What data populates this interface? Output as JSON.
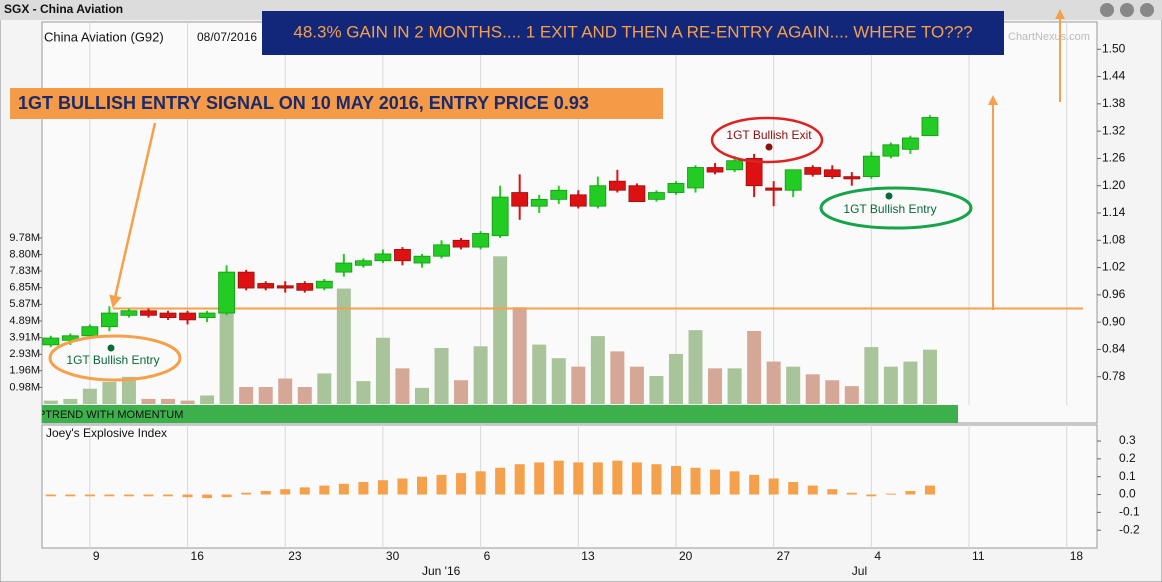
{
  "window_title": "SGX - China Aviation",
  "watermark": "ChartNexus.com",
  "chart_data": [
    {
      "type": "candlestick",
      "title": "China Aviation (G92)",
      "date": "08/07/2016",
      "up_color": "#22cc22",
      "down_color": "#dd1111",
      "categories": [
        null,
        null,
        "9",
        null,
        null,
        null,
        null,
        "16",
        null,
        null,
        null,
        null,
        "23",
        null,
        null,
        null,
        null,
        "30",
        null,
        null,
        null,
        null,
        "6",
        null,
        null,
        null,
        null,
        "13",
        null,
        null,
        null,
        null,
        "20",
        null,
        null,
        null,
        null,
        "27",
        null,
        null,
        null,
        null,
        "4",
        null,
        null,
        null,
        null,
        "11",
        null,
        null,
        null,
        null,
        "18",
        null
      ],
      "months": [
        null,
        null,
        null,
        null,
        null,
        null,
        null,
        null,
        null,
        null,
        null,
        null,
        null,
        null,
        null,
        null,
        null,
        null,
        null,
        "Jun '16",
        null,
        null,
        null,
        null,
        null,
        null,
        null,
        null,
        null,
        null,
        null,
        null,
        null,
        null,
        null,
        null,
        null,
        null,
        null,
        null,
        null,
        "Jul",
        null,
        null,
        null,
        null,
        null,
        null,
        null,
        null,
        null,
        null,
        null
      ],
      "open": [
        0.85,
        0.86,
        0.87,
        0.89,
        0.915,
        0.925,
        0.92,
        0.92,
        0.91,
        0.92,
        1.01,
        0.985,
        0.98,
        0.985,
        0.975,
        1.01,
        1.025,
        1.035,
        1.06,
        1.03,
        1.045,
        1.08,
        1.065,
        1.09,
        1.185,
        1.155,
        1.17,
        1.18,
        1.155,
        1.21,
        1.2,
        1.17,
        1.185,
        1.195,
        1.24,
        1.235,
        1.26,
        1.195,
        1.19,
        1.24,
        1.235,
        1.22,
        1.22,
        1.265,
        1.28,
        1.31,
        null,
        null,
        null,
        null,
        null,
        null,
        null
      ],
      "high": [
        0.87,
        0.875,
        0.895,
        0.935,
        0.93,
        0.93,
        0.925,
        0.925,
        0.925,
        1.025,
        1.015,
        0.99,
        0.99,
        0.99,
        0.995,
        1.05,
        1.04,
        1.06,
        1.065,
        1.05,
        1.08,
        1.085,
        1.1,
        1.2,
        1.225,
        1.18,
        1.2,
        1.19,
        1.22,
        1.235,
        1.205,
        1.19,
        1.21,
        1.245,
        1.25,
        1.265,
        1.27,
        1.21,
        1.235,
        1.245,
        1.245,
        1.23,
        1.275,
        1.295,
        1.31,
        1.355,
        null,
        null,
        null,
        null,
        null,
        null,
        null
      ],
      "low": [
        0.845,
        0.85,
        0.865,
        0.88,
        0.91,
        0.91,
        0.905,
        0.895,
        0.9,
        0.915,
        0.97,
        0.97,
        0.965,
        0.965,
        0.97,
        1.0,
        1.02,
        1.03,
        1.025,
        1.02,
        1.04,
        1.06,
        1.06,
        1.085,
        1.125,
        1.14,
        1.16,
        1.15,
        1.15,
        1.185,
        1.165,
        1.165,
        1.18,
        1.185,
        1.225,
        1.23,
        1.175,
        1.155,
        1.175,
        1.22,
        1.215,
        1.2,
        1.215,
        1.26,
        1.27,
        1.31,
        null,
        null,
        null,
        null,
        null,
        null,
        null
      ],
      "close": [
        0.865,
        0.87,
        0.89,
        0.92,
        0.925,
        0.915,
        0.91,
        0.905,
        0.92,
        1.01,
        0.975,
        0.975,
        0.975,
        0.97,
        0.99,
        1.03,
        1.035,
        1.05,
        1.035,
        1.045,
        1.07,
        1.065,
        1.095,
        1.175,
        1.155,
        1.17,
        1.19,
        1.155,
        1.2,
        1.19,
        1.165,
        1.185,
        1.205,
        1.24,
        1.23,
        1.255,
        1.2,
        1.19,
        1.235,
        1.225,
        1.22,
        1.215,
        1.265,
        1.29,
        1.305,
        1.35,
        null,
        null,
        null,
        null,
        null,
        null,
        null
      ],
      "volume": {
        "axis": "y2",
        "up_color": "#a9c49b",
        "down_color": "#d4a796",
        "values": [
          200000,
          300000,
          900000,
          1300000,
          1600000,
          300000,
          300000,
          200000,
          500000,
          5400000,
          1000000,
          1000000,
          1500000,
          1000000,
          1800000,
          6800000,
          1350000,
          3900000,
          2100000,
          950000,
          3300000,
          1400000,
          3400000,
          8700000,
          5700000,
          3500000,
          2700000,
          2200000,
          4000000,
          3100000,
          2200000,
          1650000,
          2950000,
          4350000,
          2100000,
          2100000,
          4300000,
          2500000,
          2200000,
          1750000,
          1400000,
          1050000,
          3350000,
          2200000,
          2500000,
          3200000,
          null,
          null,
          null,
          null,
          null,
          null,
          null
        ]
      },
      "ylim": [
        0.72,
        1.56
      ],
      "yticks": [
        0.78,
        0.84,
        {
          "value": 0.9,
          "label": "0.90"
        },
        0.96,
        1.02,
        1.08,
        1.14,
        {
          "value": 1.2,
          "label": "1.20"
        },
        1.26,
        1.32,
        1.38,
        1.44,
        {
          "value": 1.5,
          "label": "1.50"
        }
      ],
      "y2lim": [
        0,
        22500000
      ],
      "y2ticks": [
        {
          "value": 980000,
          "label": "0.98M"
        },
        {
          "value": 1960000,
          "label": "1.96M"
        },
        {
          "value": 2930000,
          "label": "2.93M"
        },
        {
          "value": 3910000,
          "label": "3.91M"
        },
        {
          "value": 4890000,
          "label": "4.89M"
        },
        {
          "value": 5870000,
          "label": "5.87M"
        },
        {
          "value": 6850000,
          "label": "6.85M"
        },
        {
          "value": 7830000,
          "label": "7.83M"
        },
        {
          "value": 8800000,
          "label": "8.80M"
        },
        {
          "value": 9780000,
          "label": "9.78M"
        }
      ],
      "trend_label": "UPTREND WITH MOMENTUM",
      "entry_price": 0.93,
      "annotations": [
        "48.3% GAIN IN 2 MONTHS.... 1 EXIT AND THEN A RE-ENTRY AGAIN.... WHERE TO???",
        "1GT BULLISH ENTRY SIGNAL ON 10 MAY 2016, ENTRY PRICE 0.93",
        "1GT Bullish Entry",
        "1GT Bullish Exit",
        "1GT Bullish Entry"
      ]
    },
    {
      "type": "bar",
      "title": "Joey's Explosive Index",
      "color": "#f5a04a",
      "values": [
        -0.01,
        -0.01,
        -0.01,
        -0.01,
        -0.01,
        -0.01,
        -0.01,
        -0.015,
        -0.02,
        -0.015,
        0.01,
        0.02,
        0.03,
        0.04,
        0.05,
        0.06,
        0.07,
        0.08,
        0.09,
        0.1,
        0.11,
        0.12,
        0.13,
        0.15,
        0.17,
        0.18,
        0.19,
        0.18,
        0.18,
        0.19,
        0.18,
        0.17,
        0.16,
        0.15,
        0.14,
        0.13,
        0.11,
        0.09,
        0.07,
        0.05,
        0.03,
        0.01,
        -0.01,
        0.005,
        0.02,
        0.05,
        null,
        null,
        null,
        null,
        null,
        null,
        null
      ],
      "ylim": [
        -0.3,
        0.39
      ],
      "yticks": [
        0.3,
        0.2,
        0.1,
        {
          "value": 0,
          "label": "0.0"
        },
        -0.1,
        -0.2
      ]
    }
  ]
}
